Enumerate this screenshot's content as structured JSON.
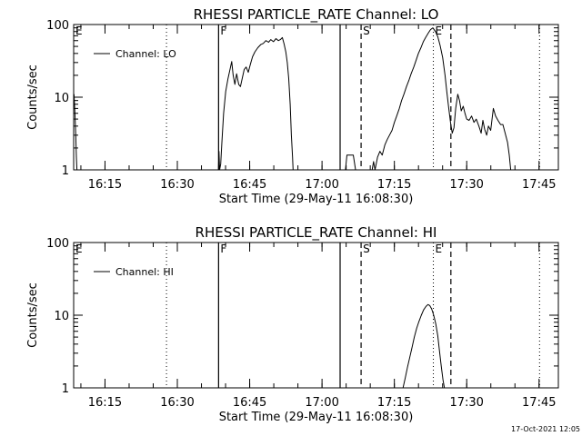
{
  "footer": {
    "timestamp": "17-Oct-2021 12:05"
  },
  "chart_data": [
    {
      "type": "line",
      "title": "RHESSI PARTICLE_RATE Channel: LO",
      "xlabel": "Start Time (29-May-11 16:08:30)",
      "ylabel": "Counts/sec",
      "yscale": "log",
      "ylim": [
        1,
        100
      ],
      "xlim": [
        16.1417,
        17.8167
      ],
      "yticks": [
        1,
        10,
        100
      ],
      "ytick_labels": [
        "1",
        "10",
        "100"
      ],
      "xticks": [
        16.25,
        16.5,
        16.75,
        17.0,
        17.25,
        17.5,
        17.75
      ],
      "xtick_labels": [
        "16:15",
        "16:30",
        "16:45",
        "17:00",
        "17:15",
        "17:30",
        "17:45"
      ],
      "legend": {
        "position": "top-left",
        "entry": "Channel: LO"
      },
      "series": [
        {
          "name": "Channel: LO",
          "segments": [
            [
              [
                16.143,
                11
              ],
              [
                16.146,
                6
              ],
              [
                16.149,
                3
              ],
              [
                16.151,
                1.5
              ],
              [
                16.153,
                1
              ]
            ],
            [
              [
                16.642,
                1
              ],
              [
                16.644,
                1.8
              ],
              [
                16.646,
                1
              ],
              [
                16.65,
                1.2
              ],
              [
                16.654,
                2.4
              ],
              [
                16.66,
                6
              ],
              [
                16.667,
                12
              ],
              [
                16.675,
                18
              ],
              [
                16.683,
                25
              ],
              [
                16.688,
                31
              ],
              [
                16.693,
                20
              ],
              [
                16.699,
                15
              ],
              [
                16.705,
                21
              ],
              [
                16.712,
                15
              ],
              [
                16.718,
                14
              ],
              [
                16.724,
                18
              ],
              [
                16.731,
                24
              ],
              [
                16.738,
                26
              ],
              [
                16.745,
                22
              ],
              [
                16.752,
                28
              ],
              [
                16.76,
                36
              ],
              [
                16.768,
                42
              ],
              [
                16.778,
                48
              ],
              [
                16.788,
                53
              ],
              [
                16.797,
                55
              ],
              [
                16.806,
                60
              ],
              [
                16.815,
                57
              ],
              [
                16.823,
                62
              ],
              [
                16.832,
                58
              ],
              [
                16.841,
                64
              ],
              [
                16.849,
                60
              ],
              [
                16.856,
                62
              ],
              [
                16.863,
                66
              ],
              [
                16.869,
                54
              ],
              [
                16.875,
                42
              ],
              [
                16.88,
                30
              ],
              [
                16.885,
                18
              ],
              [
                16.89,
                8
              ],
              [
                16.894,
                3
              ],
              [
                16.898,
                1.5
              ],
              [
                16.9,
                1
              ]
            ],
            [
              [
                17.081,
                1
              ],
              [
                17.086,
                1.6
              ],
              [
                17.108,
                1.6
              ],
              [
                17.116,
                1
              ]
            ],
            [
              [
                17.173,
                1
              ],
              [
                17.178,
                1.3
              ],
              [
                17.183,
                1
              ],
              [
                17.192,
                1.5
              ],
              [
                17.2,
                1.8
              ],
              [
                17.208,
                1.6
              ],
              [
                17.217,
                2.2
              ],
              [
                17.225,
                2.6
              ],
              [
                17.233,
                3.0
              ],
              [
                17.242,
                3.5
              ],
              [
                17.25,
                4.5
              ],
              [
                17.258,
                5.5
              ],
              [
                17.267,
                7
              ],
              [
                17.275,
                9
              ],
              [
                17.283,
                11
              ],
              [
                17.292,
                14
              ],
              [
                17.3,
                17
              ],
              [
                17.308,
                21
              ],
              [
                17.317,
                26
              ],
              [
                17.325,
                32
              ],
              [
                17.333,
                40
              ],
              [
                17.342,
                48
              ],
              [
                17.35,
                58
              ],
              [
                17.358,
                66
              ],
              [
                17.367,
                76
              ],
              [
                17.375,
                85
              ],
              [
                17.383,
                90
              ],
              [
                17.392,
                80
              ],
              [
                17.4,
                68
              ],
              [
                17.408,
                52
              ],
              [
                17.417,
                35
              ],
              [
                17.425,
                20
              ],
              [
                17.431,
                12
              ],
              [
                17.438,
                7
              ],
              [
                17.444,
                4.5
              ],
              [
                17.45,
                3.2
              ],
              [
                17.456,
                3.8
              ],
              [
                17.462,
                7
              ],
              [
                17.469,
                11
              ],
              [
                17.475,
                9
              ],
              [
                17.481,
                6.5
              ],
              [
                17.488,
                7.5
              ],
              [
                17.494,
                6
              ],
              [
                17.5,
                5
              ],
              [
                17.508,
                4.8
              ],
              [
                17.517,
                5.5
              ],
              [
                17.525,
                4.5
              ],
              [
                17.533,
                5
              ],
              [
                17.542,
                4
              ],
              [
                17.55,
                3.2
              ],
              [
                17.556,
                4.8
              ],
              [
                17.562,
                3.6
              ],
              [
                17.569,
                3.0
              ],
              [
                17.575,
                4
              ],
              [
                17.583,
                3.5
              ],
              [
                17.592,
                7
              ],
              [
                17.6,
                5.5
              ],
              [
                17.608,
                4.8
              ],
              [
                17.617,
                4.2
              ],
              [
                17.625,
                4.2
              ],
              [
                17.633,
                3.2
              ],
              [
                17.641,
                2.4
              ],
              [
                17.647,
                1.6
              ],
              [
                17.652,
                1
              ]
            ]
          ]
        }
      ],
      "solid_markers": [
        16.6425,
        17.0625
      ],
      "dotted_markers": [
        16.4625,
        17.3847,
        17.7517
      ],
      "dashed_markers": [
        17.135,
        17.4453
      ],
      "flags": [
        {
          "label": "E",
          "x": 16.1417
        },
        {
          "label": "F",
          "x": 16.6425
        },
        {
          "label": "S",
          "x": 17.135
        },
        {
          "label": "E",
          "x": 17.3847
        }
      ]
    },
    {
      "type": "line",
      "title": "RHESSI PARTICLE_RATE Channel: HI",
      "xlabel": "Start Time (29-May-11 16:08:30)",
      "ylabel": "Counts/sec",
      "yscale": "log",
      "ylim": [
        1,
        100
      ],
      "xlim": [
        16.1417,
        17.8167
      ],
      "yticks": [
        1,
        10,
        100
      ],
      "ytick_labels": [
        "1",
        "10",
        "100"
      ],
      "xticks": [
        16.25,
        16.5,
        16.75,
        17.0,
        17.25,
        17.5,
        17.75
      ],
      "xtick_labels": [
        "16:15",
        "16:30",
        "16:45",
        "17:00",
        "17:15",
        "17:30",
        "17:45"
      ],
      "legend": {
        "position": "top-left",
        "entry": "Channel: HI"
      },
      "series": [
        {
          "name": "Channel: HI",
          "segments": [
            [
              [
                17.28,
                1
              ],
              [
                17.288,
                1.4
              ],
              [
                17.295,
                1.9
              ],
              [
                17.303,
                2.6
              ],
              [
                17.311,
                3.6
              ],
              [
                17.319,
                5
              ],
              [
                17.327,
                6.6
              ],
              [
                17.335,
                8.2
              ],
              [
                17.343,
                10
              ],
              [
                17.351,
                11.8
              ],
              [
                17.359,
                13.2
              ],
              [
                17.366,
                14
              ],
              [
                17.372,
                13.6
              ],
              [
                17.379,
                12.2
              ],
              [
                17.386,
                10
              ],
              [
                17.393,
                7.6
              ],
              [
                17.4,
                5.2
              ],
              [
                17.406,
                3.2
              ],
              [
                17.412,
                2.0
              ],
              [
                17.418,
                1.3
              ],
              [
                17.423,
                1
              ]
            ]
          ]
        }
      ],
      "solid_markers": [
        16.6425,
        17.0625
      ],
      "dotted_markers": [
        16.4625,
        17.3847,
        17.7517
      ],
      "dashed_markers": [
        17.135,
        17.4453
      ],
      "flags": [
        {
          "label": "E",
          "x": 16.1417
        },
        {
          "label": "F",
          "x": 16.6425
        },
        {
          "label": "S",
          "x": 17.135
        },
        {
          "label": "E",
          "x": 17.3847
        }
      ]
    }
  ]
}
